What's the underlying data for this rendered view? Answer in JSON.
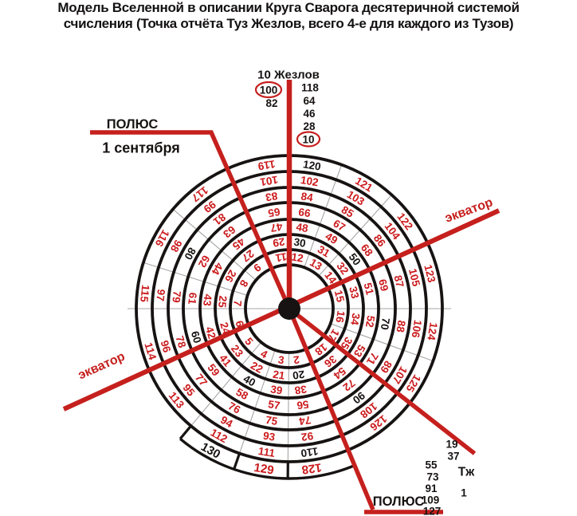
{
  "title_lines": [
    "Модель Вселенной в описании Круга Сварога десятеричной системой",
    "счисления (Точка отчёта Туз Жезлов, всего 4-е для каждого из Тузов)"
  ],
  "colors": {
    "red": "#c5201d",
    "number_red": "#cb1a1c",
    "black": "#171313",
    "gray": "#a6a6a6",
    "background": "#ffffff"
  },
  "top_axis": {
    "label": "10 Жезлов",
    "left_column": [
      "100",
      "82"
    ],
    "right_column": [
      "118",
      "64",
      "46",
      "28",
      "10"
    ],
    "circled_values": [
      "100",
      "10"
    ]
  },
  "pole_top": {
    "label": "ПОЛЮС",
    "date": "1 сентября"
  },
  "equators": {
    "right": "экватор",
    "left": "экватор"
  },
  "pole_bottom": {
    "label": "ПОЛЮС"
  },
  "ace_axis": {
    "label": "Тж",
    "above_line": [
      "19",
      "37"
    ],
    "below_line": [
      "55",
      "73",
      "91",
      "109",
      "127"
    ],
    "start_value": "1"
  },
  "diagram": {
    "description": "Круг Сварога: 18 секторов, 7 колец + дуга 8-го кольца, числа 1-130, десятки чёрным",
    "sector_count": 18,
    "ring_radii": [
      65,
      84,
      103,
      122,
      142,
      162,
      182,
      203
    ],
    "circle_radii": [
      55,
      74,
      93,
      112,
      133,
      152,
      172,
      192
    ],
    "band_outer_radius": 213,
    "sectors": [
      {
        "sector": 1,
        "angle_deg": 158,
        "hidden": true,
        "numbers": [
          1,
          19,
          37,
          55,
          73,
          91,
          109,
          127
        ]
      },
      {
        "sector": 2,
        "angle_deg": 172,
        "hidden": false,
        "numbers": [
          2,
          20,
          38,
          56,
          74,
          92,
          110,
          128
        ]
      },
      {
        "sector": 3,
        "angle_deg": 189,
        "hidden": false,
        "numbers": [
          3,
          21,
          39,
          57,
          75,
          93,
          111,
          129
        ]
      },
      {
        "sector": 4,
        "angle_deg": 209,
        "hidden": false,
        "numbers": [
          4,
          22,
          40,
          58,
          76,
          94,
          112,
          130
        ]
      },
      {
        "sector": 5,
        "angle_deg": 231,
        "hidden": false,
        "numbers": [
          5,
          23,
          41,
          59,
          77,
          95,
          113
        ]
      },
      {
        "sector": 6,
        "angle_deg": 253,
        "hidden": false,
        "numbers": [
          6,
          24,
          42,
          60,
          78,
          96,
          114
        ]
      },
      {
        "sector": 7,
        "angle_deg": 276,
        "hidden": false,
        "numbers": [
          7,
          25,
          43,
          61,
          79,
          97,
          115
        ]
      },
      {
        "sector": 8,
        "angle_deg": 299,
        "hidden": false,
        "numbers": [
          8,
          26,
          44,
          62,
          80,
          98,
          116
        ]
      },
      {
        "sector": 9,
        "angle_deg": 322,
        "hidden": false,
        "numbers": [
          9,
          27,
          45,
          63,
          81,
          99,
          117
        ]
      },
      {
        "sector": 10,
        "angle_deg": 337,
        "hidden": true,
        "numbers": [
          10,
          28,
          46,
          64,
          82,
          100,
          118
        ]
      },
      {
        "sector": 11,
        "angle_deg": 351,
        "hidden": false,
        "numbers": [
          11,
          29,
          47,
          65,
          83,
          101,
          119
        ]
      },
      {
        "sector": 12,
        "angle_deg": 9,
        "hidden": false,
        "numbers": [
          12,
          30,
          48,
          66,
          84,
          102,
          120
        ]
      },
      {
        "sector": 13,
        "angle_deg": 31,
        "hidden": false,
        "numbers": [
          13,
          31,
          49,
          67,
          85,
          103,
          121
        ]
      },
      {
        "sector": 14,
        "angle_deg": 53,
        "hidden": false,
        "numbers": [
          14,
          32,
          50,
          68,
          86,
          104,
          122
        ]
      },
      {
        "sector": 15,
        "angle_deg": 76,
        "hidden": false,
        "numbers": [
          15,
          33,
          51,
          69,
          87,
          105,
          123
        ]
      },
      {
        "sector": 16,
        "angle_deg": 99,
        "hidden": false,
        "numbers": [
          16,
          34,
          52,
          70,
          88,
          106,
          124
        ]
      },
      {
        "sector": 17,
        "angle_deg": 121,
        "hidden": false,
        "numbers": [
          17,
          35,
          53,
          71,
          89,
          107,
          125
        ]
      },
      {
        "sector": 18,
        "angle_deg": 142,
        "hidden": false,
        "numbers": [
          18,
          36,
          54,
          72,
          90,
          108,
          126
        ]
      }
    ],
    "divider_angles": [
      20,
      42,
      110,
      180.5,
      199,
      220,
      287.5,
      310.5
    ],
    "outer_band": {
      "from_deg": 157,
      "to_deg": 220,
      "edge_degs": [
        180.5,
        199,
        220
      ]
    }
  }
}
